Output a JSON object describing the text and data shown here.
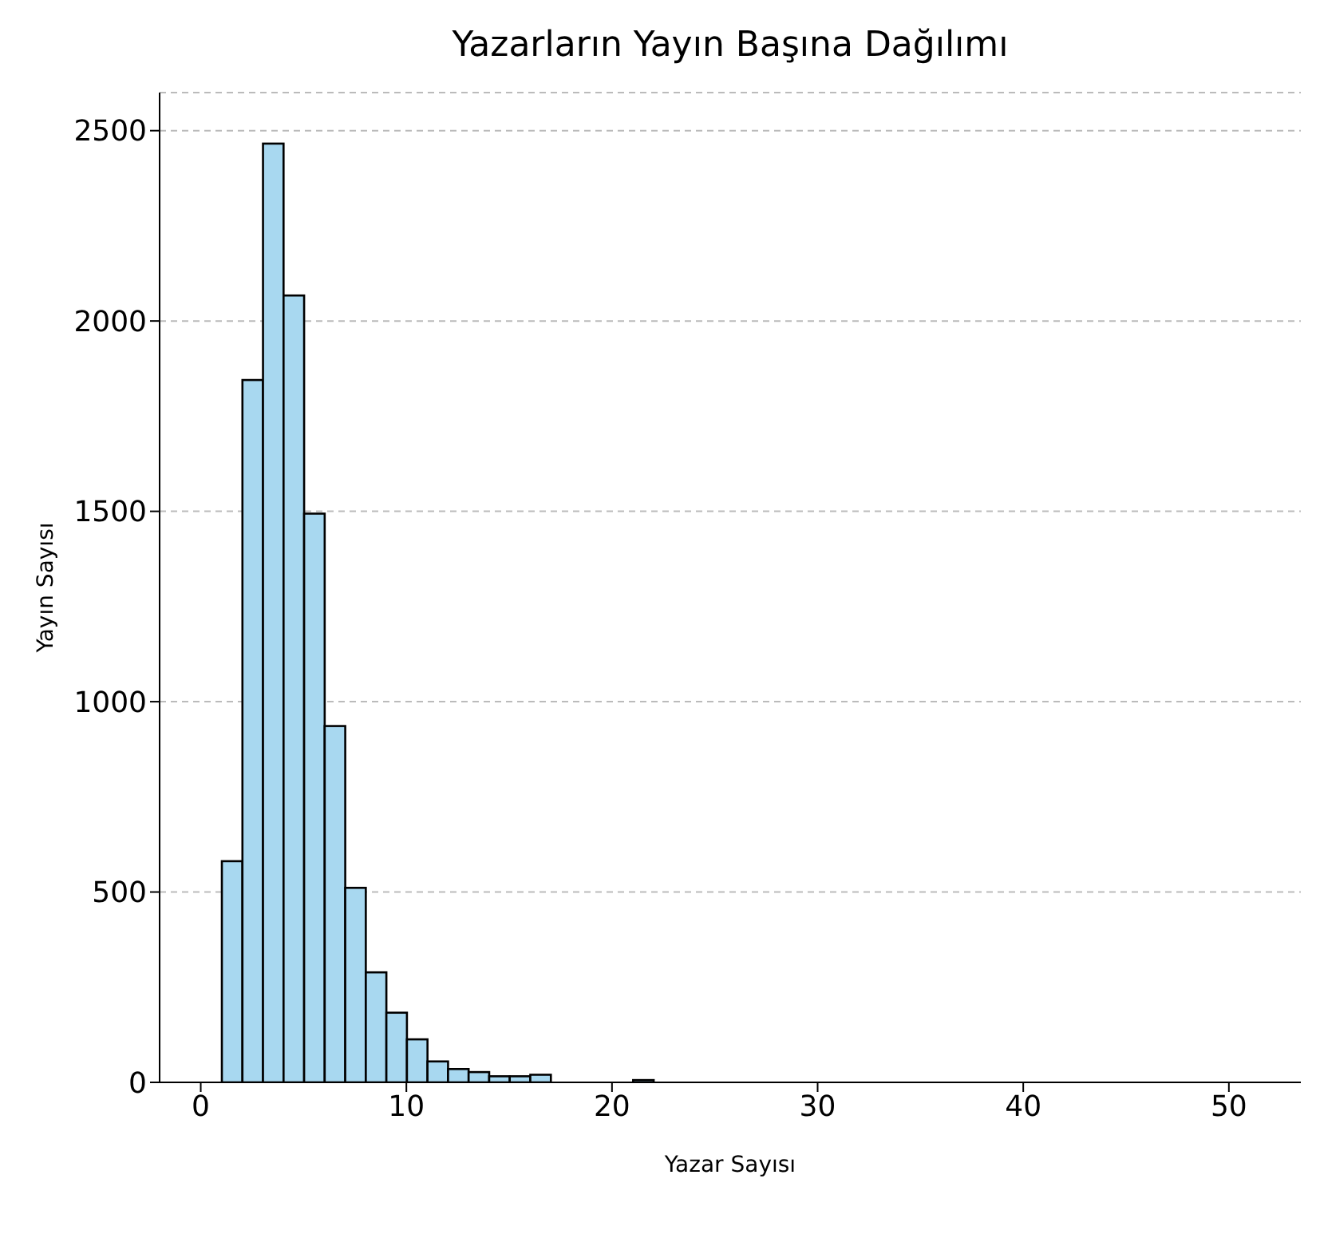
{
  "chart_data": {
    "type": "histogram",
    "title": "Yazarların Yayın Başına Dağılımı",
    "xlabel": "Yazar Sayısı",
    "ylabel": "Yayın Sayısı",
    "bins": [
      1,
      2,
      3,
      4,
      5,
      6,
      7,
      8,
      9,
      10,
      11,
      12,
      13,
      14,
      15,
      16,
      17,
      18,
      19,
      20,
      21,
      22,
      23,
      24,
      25,
      26,
      27,
      28,
      29,
      30,
      31,
      32,
      33,
      34,
      35,
      36,
      37,
      38,
      39,
      40,
      41,
      42,
      43,
      44,
      45,
      46,
      47,
      48,
      49,
      50,
      51,
      52
    ],
    "values": [
      581,
      1845,
      2466,
      2067,
      1494,
      936,
      511,
      289,
      183,
      113,
      55,
      35,
      27,
      16,
      16,
      20,
      null,
      null,
      null,
      null,
      6,
      null,
      null,
      0,
      0,
      0,
      0,
      0,
      0,
      0,
      0,
      0,
      0,
      0,
      0,
      0,
      0,
      0,
      0,
      0,
      0,
      0,
      0,
      0,
      0,
      0,
      0,
      0,
      0,
      0,
      0
    ],
    "color": "#a8d8f0",
    "xlim": [
      -2,
      53.5
    ],
    "xticks": [
      0,
      10,
      20,
      30,
      40,
      50
    ],
    "ylim": [
      0,
      2600
    ],
    "yticks": [
      0,
      500,
      1000,
      1500,
      2000,
      2500
    ],
    "grid": "y"
  }
}
